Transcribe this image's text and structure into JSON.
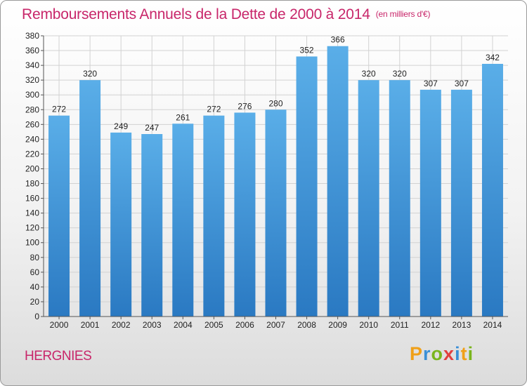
{
  "page": {
    "commune": "HERGNIES",
    "logo_letters": [
      "P",
      "r",
      "o",
      "x",
      "i",
      "t",
      "i"
    ],
    "logo_colors": [
      "#f0a018",
      "#3a8fd6",
      "#7ab51d",
      "#e23f3f",
      "#3a8fd6",
      "#f0a018",
      "#7ab51d"
    ]
  },
  "chart_data": {
    "type": "bar",
    "title": "Remboursements Annuels de la Dette de 2000 à 2014",
    "subtitle": "(en milliers d'€)",
    "categories": [
      "2000",
      "2001",
      "2002",
      "2003",
      "2004",
      "2005",
      "2006",
      "2007",
      "2008",
      "2009",
      "2010",
      "2011",
      "2012",
      "2013",
      "2014"
    ],
    "values": [
      272,
      320,
      249,
      247,
      261,
      272,
      276,
      280,
      352,
      366,
      320,
      320,
      307,
      307,
      342
    ],
    "data_labels": [
      "272",
      "320",
      "249",
      "247",
      "261",
      "272",
      "276",
      "280",
      "352",
      "366",
      "320",
      "320",
      "307",
      "307",
      "342"
    ],
    "ylim": [
      0,
      380
    ],
    "yticks": [
      0,
      20,
      40,
      60,
      80,
      100,
      120,
      140,
      160,
      180,
      200,
      220,
      240,
      260,
      280,
      300,
      320,
      340,
      360,
      380
    ],
    "ytick_labels": [
      "0",
      "20",
      "40",
      "60",
      "80",
      "100",
      "120",
      "140",
      "160",
      "180",
      "200",
      "220",
      "240",
      "260",
      "280",
      "300",
      "320",
      "340",
      "360",
      "380"
    ],
    "grid": true,
    "bar_color_top": "#5aaee8",
    "bar_color_bottom": "#2a79c2"
  }
}
